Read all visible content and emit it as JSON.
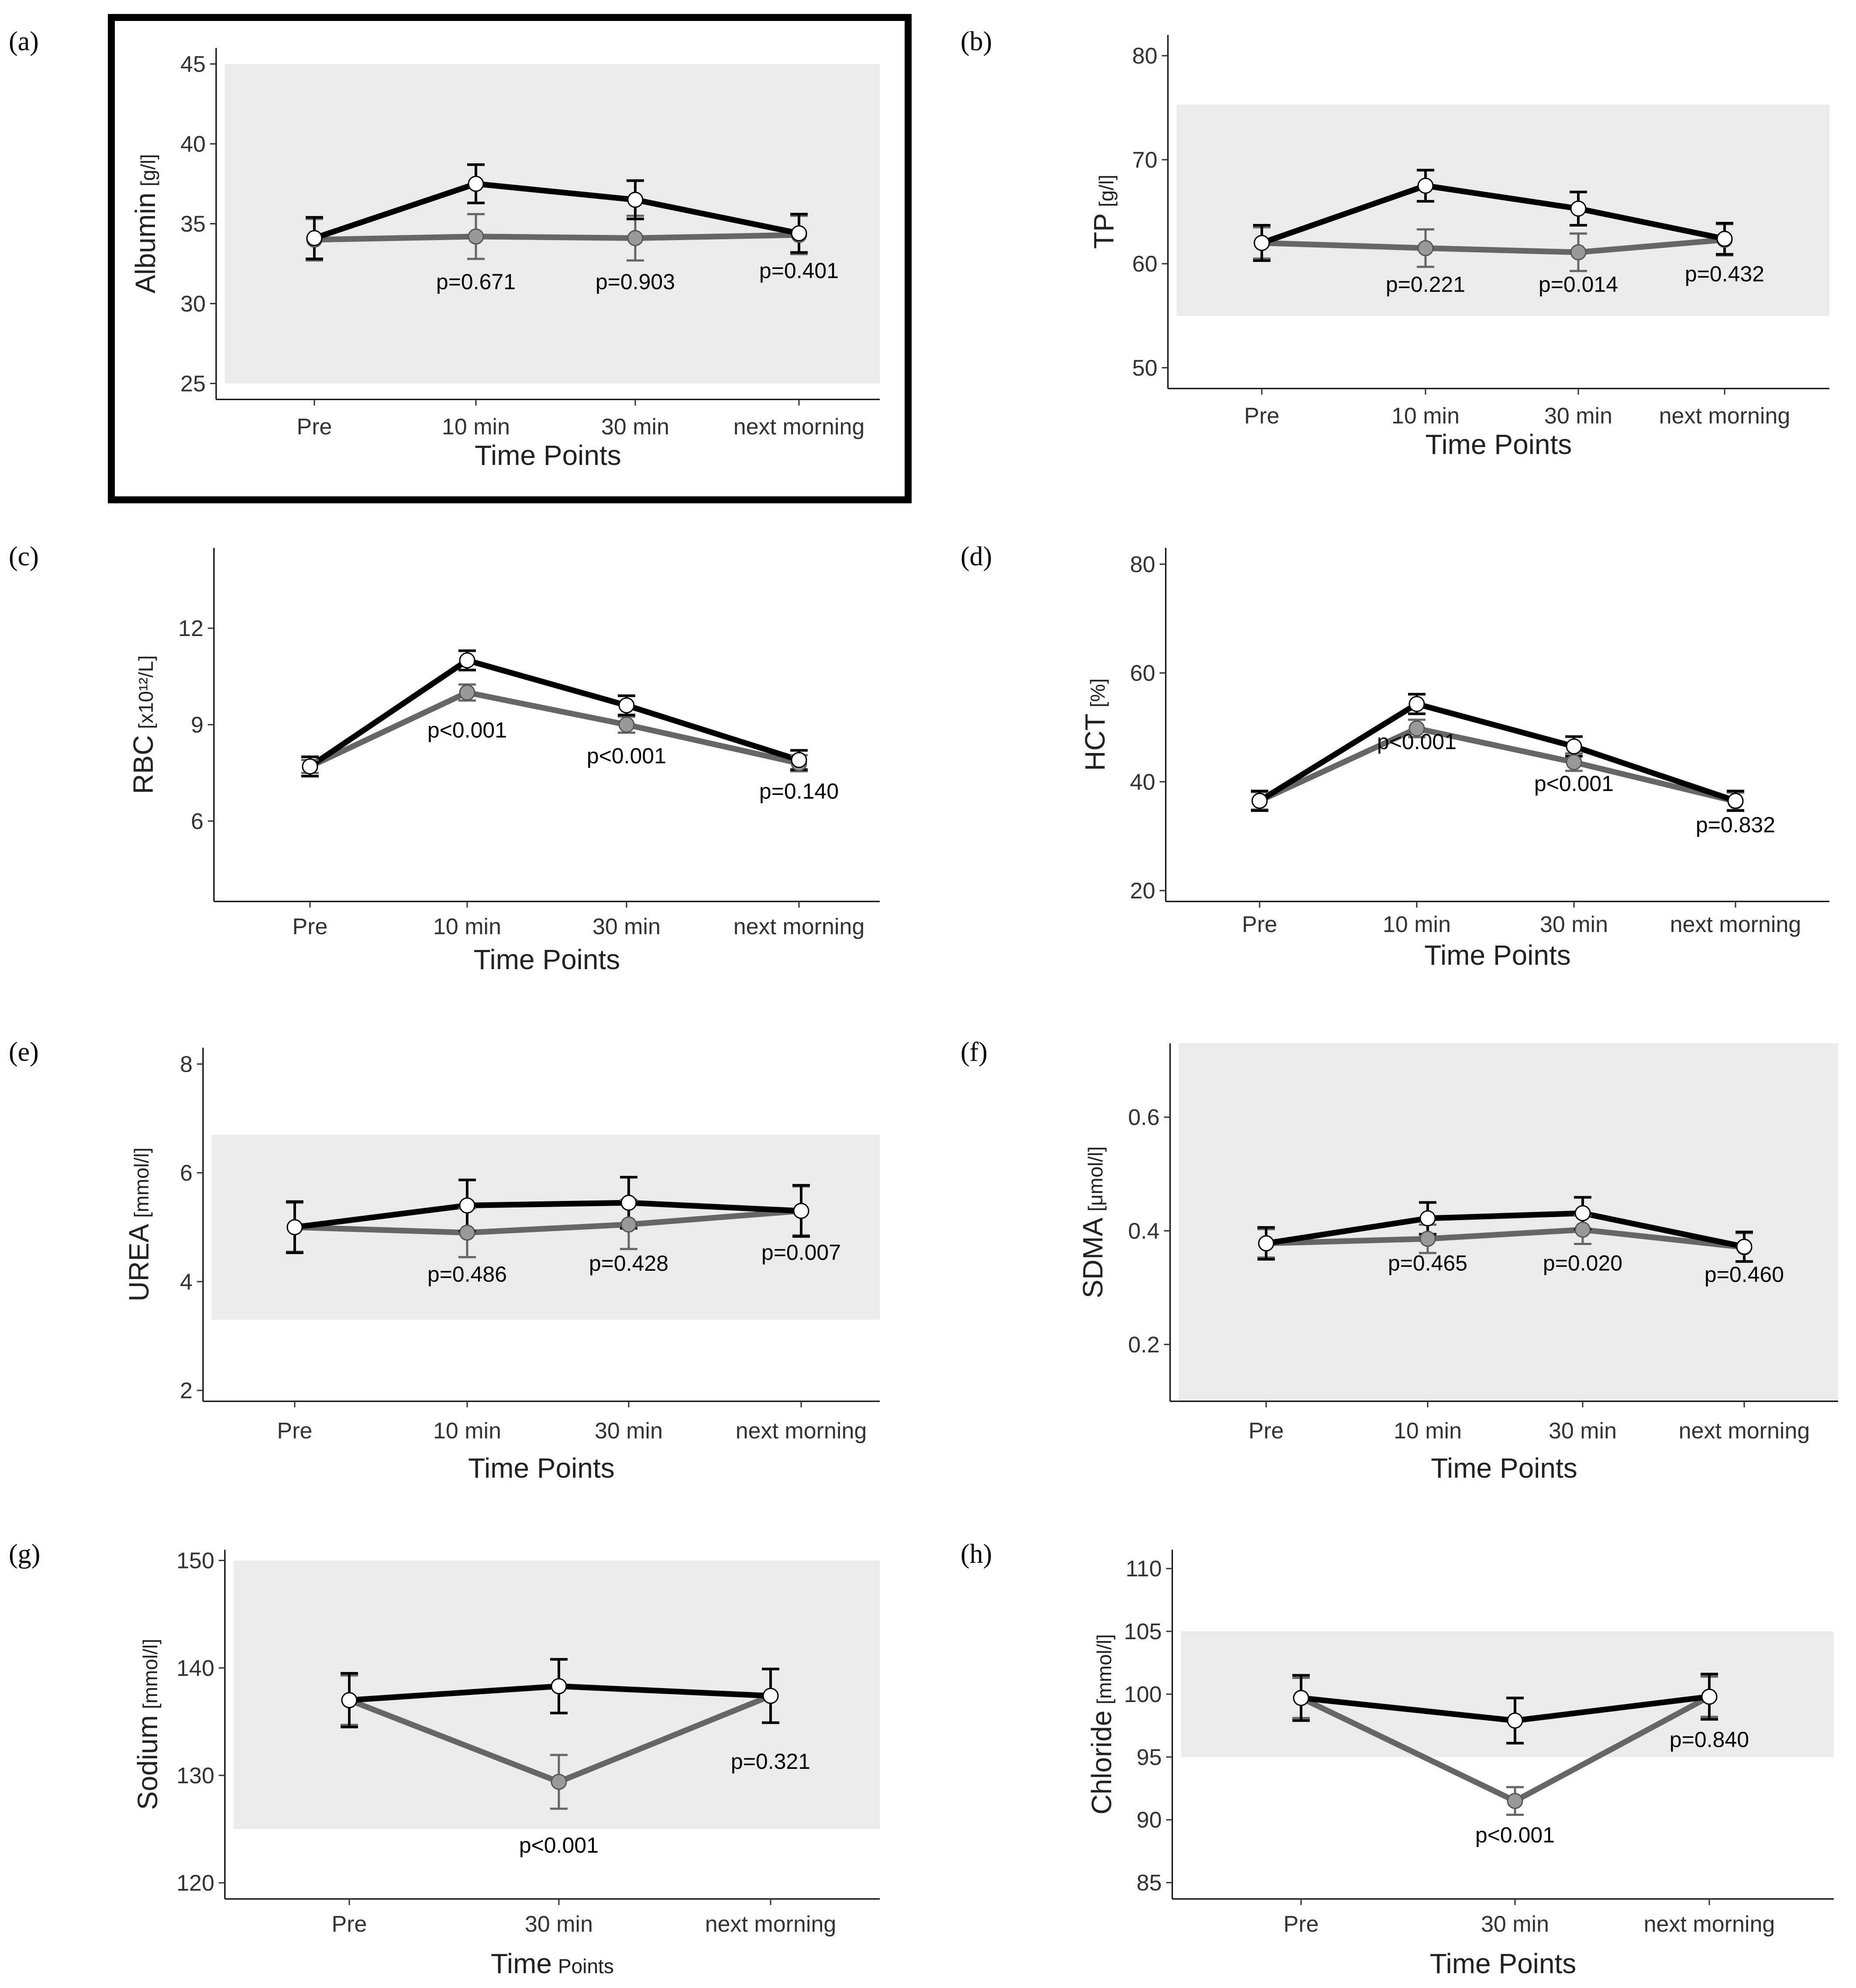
{
  "figure": {
    "highlight_panel": "a",
    "band_color": "#ebebeb",
    "series_colors": {
      "series_1": "#000000",
      "series_2": "#666666"
    },
    "marker_fill": {
      "series_1": "#ffffff",
      "series_2": "#999999"
    }
  },
  "chart_data": [
    {
      "id": "a",
      "letter": "(a)",
      "type": "line",
      "title": "",
      "ylabel": "Albumin",
      "yunit": "[g/l]",
      "xlabel": "Time Points",
      "xlabel_suffix": "",
      "categories": [
        "Pre",
        "10 min",
        "30 min",
        "next morning"
      ],
      "ylim": [
        24,
        46
      ],
      "yticks": [
        25,
        30,
        35,
        40,
        45
      ],
      "band": [
        25,
        45
      ],
      "series": [
        {
          "name": "series_1",
          "values": [
            34.1,
            37.5,
            36.5,
            34.4
          ],
          "errors": [
            1.3,
            1.2,
            1.2,
            1.2
          ]
        },
        {
          "name": "series_2",
          "values": [
            34.0,
            34.2,
            34.1,
            34.3
          ],
          "errors": [
            1.3,
            1.4,
            1.4,
            1.2
          ]
        }
      ],
      "pvalues": [
        {
          "label": "p=0.671",
          "index": 1,
          "y": 30.9
        },
        {
          "label": "p=0.903",
          "index": 2,
          "y": 30.9
        },
        {
          "label": "p=0.401",
          "index": 3,
          "y": 31.6
        }
      ]
    },
    {
      "id": "b",
      "letter": "(b)",
      "type": "line",
      "title": "",
      "ylabel": "TP",
      "yunit": "[g/l]",
      "xlabel": "Time Points",
      "xlabel_suffix": "",
      "categories": [
        "Pre",
        "10 min",
        "30 min",
        "next morning"
      ],
      "ylim": [
        48,
        82
      ],
      "yticks": [
        50,
        60,
        70,
        80
      ],
      "band": [
        55,
        75.3
      ],
      "series": [
        {
          "name": "series_1",
          "values": [
            62.0,
            67.5,
            65.3,
            62.4
          ],
          "errors": [
            1.7,
            1.5,
            1.6,
            1.5
          ]
        },
        {
          "name": "series_2",
          "values": [
            62.0,
            61.5,
            61.1,
            62.3
          ],
          "errors": [
            1.5,
            1.8,
            1.8,
            1.5
          ]
        }
      ],
      "pvalues": [
        {
          "label": "p=0.221",
          "index": 1,
          "y": 57.3
        },
        {
          "label": "p=0.014",
          "index": 2,
          "y": 57.3
        },
        {
          "label": "p=0.432",
          "index": 3,
          "y": 58.3
        }
      ]
    },
    {
      "id": "c",
      "letter": "(c)",
      "type": "line",
      "title": "",
      "ylabel": "RBC",
      "yunit": "[x10¹²/L]",
      "xlabel": "Time Points",
      "xlabel_suffix": "",
      "categories": [
        "Pre",
        "10 min",
        "30 min",
        "next morning"
      ],
      "ylim": [
        3.5,
        14.5
      ],
      "yticks": [
        6,
        9,
        12
      ],
      "band": null,
      "series": [
        {
          "name": "series_1",
          "values": [
            7.7,
            11.0,
            9.6,
            7.9
          ],
          "errors": [
            0.3,
            0.3,
            0.3,
            0.3
          ]
        },
        {
          "name": "series_2",
          "values": [
            7.7,
            10.0,
            9.0,
            7.8
          ],
          "errors": [
            0.2,
            0.25,
            0.25,
            0.25
          ]
        }
      ],
      "pvalues": [
        {
          "label": "p<0.001",
          "index": 1,
          "y": 8.6
        },
        {
          "label": "p<0.001",
          "index": 2,
          "y": 7.8
        },
        {
          "label": "p=0.140",
          "index": 3,
          "y": 6.7
        }
      ]
    },
    {
      "id": "d",
      "letter": "(d)",
      "type": "line",
      "title": "",
      "ylabel": "HCT",
      "yunit": "[%]",
      "xlabel": "Time Points",
      "xlabel_suffix": "",
      "categories": [
        "Pre",
        "10 min",
        "30 min",
        "next morning"
      ],
      "ylim": [
        18,
        83
      ],
      "yticks": [
        20,
        40,
        60,
        80
      ],
      "band": null,
      "series": [
        {
          "name": "series_1",
          "values": [
            36.5,
            54.3,
            46.5,
            36.5
          ],
          "errors": [
            1.8,
            1.8,
            1.8,
            1.8
          ]
        },
        {
          "name": "series_2",
          "values": [
            36.5,
            49.8,
            43.6,
            36.4
          ],
          "errors": [
            1.6,
            1.6,
            1.6,
            1.6
          ]
        }
      ],
      "pvalues": [
        {
          "label": "p<0.001",
          "index": 1,
          "y": 46.0
        },
        {
          "label": "p<0.001",
          "index": 2,
          "y": 38.3
        },
        {
          "label": "p=0.832",
          "index": 3,
          "y": 30.7
        }
      ]
    },
    {
      "id": "e",
      "letter": "(e)",
      "type": "line",
      "title": "",
      "ylabel": "UREA",
      "yunit": "[mmol/l]",
      "xlabel": "Time Points",
      "xlabel_suffix": "",
      "categories": [
        "Pre",
        "10 min",
        "30 min",
        "next morning"
      ],
      "ylim": [
        1.8,
        8.3
      ],
      "yticks": [
        2,
        4,
        6,
        8
      ],
      "band": [
        3.3,
        6.7
      ],
      "series": [
        {
          "name": "series_1",
          "values": [
            5.0,
            5.4,
            5.45,
            5.3
          ],
          "errors": [
            0.47,
            0.47,
            0.47,
            0.47
          ]
        },
        {
          "name": "series_2",
          "values": [
            5.0,
            4.9,
            5.05,
            5.3
          ],
          "errors": [
            0.45,
            0.45,
            0.45,
            0.45
          ]
        }
      ],
      "pvalues": [
        {
          "label": "p=0.486",
          "index": 1,
          "y": 4.0
        },
        {
          "label": "p=0.428",
          "index": 2,
          "y": 4.2
        },
        {
          "label": "p=0.007",
          "index": 3,
          "y": 4.4
        }
      ]
    },
    {
      "id": "f",
      "letter": "(f)",
      "type": "line",
      "title": "",
      "ylabel": "SDMA",
      "yunit": "[μmol/l]",
      "xlabel": "Time Points",
      "xlabel_suffix": "",
      "categories": [
        "Pre",
        "10 min",
        "30 min",
        "next morning"
      ],
      "ylim": [
        0.1,
        0.73
      ],
      "yticks": [
        0.2,
        0.4,
        0.6
      ],
      "band": [
        0.1,
        0.73
      ],
      "series": [
        {
          "name": "series_1",
          "values": [
            0.378,
            0.422,
            0.431,
            0.372
          ],
          "errors": [
            0.028,
            0.028,
            0.028,
            0.026
          ]
        },
        {
          "name": "series_2",
          "values": [
            0.378,
            0.386,
            0.402,
            0.371
          ],
          "errors": [
            0.025,
            0.025,
            0.025,
            0.025
          ]
        }
      ],
      "pvalues": [
        {
          "label": "p=0.465",
          "index": 1,
          "y": 0.33
        },
        {
          "label": "p=0.020",
          "index": 2,
          "y": 0.33
        },
        {
          "label": "p=0.460",
          "index": 3,
          "y": 0.31
        }
      ]
    },
    {
      "id": "g",
      "letter": "(g)",
      "type": "line",
      "title": "",
      "ylabel": "Sodium",
      "yunit": "[mmol/l]",
      "xlabel": "Time",
      "xlabel_suffix": "Points",
      "categories": [
        "Pre",
        "30 min",
        "next morning"
      ],
      "ylim": [
        118.5,
        151
      ],
      "yticks": [
        120,
        130,
        140,
        150
      ],
      "band": [
        125,
        150
      ],
      "series": [
        {
          "name": "series_1",
          "values": [
            137.0,
            138.3,
            137.4
          ],
          "errors": [
            2.5,
            2.5,
            2.5
          ]
        },
        {
          "name": "series_2",
          "values": [
            137.0,
            129.4,
            137.4
          ],
          "errors": [
            2.3,
            2.5,
            2.5
          ]
        }
      ],
      "pvalues": [
        {
          "label": "p<0.001",
          "index": 1,
          "y": 122.8
        },
        {
          "label": "p=0.321",
          "index": 2,
          "y": 130.6
        }
      ]
    },
    {
      "id": "h",
      "letter": "(h)",
      "type": "line",
      "title": "",
      "ylabel": "Chloride",
      "yunit": "[mmol/l]",
      "xlabel": "Time Points",
      "xlabel_suffix": "",
      "categories": [
        "Pre",
        "30 min",
        "next morning"
      ],
      "ylim": [
        83.7,
        111.5
      ],
      "yticks": [
        85,
        90,
        95,
        100,
        105,
        110
      ],
      "band": [
        95,
        105
      ],
      "series": [
        {
          "name": "series_1",
          "values": [
            99.7,
            97.9,
            99.8
          ],
          "errors": [
            1.8,
            1.8,
            1.8
          ]
        },
        {
          "name": "series_2",
          "values": [
            99.7,
            91.5,
            99.8
          ],
          "errors": [
            1.6,
            1.1,
            1.6
          ]
        }
      ],
      "pvalues": [
        {
          "label": "p<0.001",
          "index": 1,
          "y": 88.2
        },
        {
          "label": "p=0.840",
          "index": 2,
          "y": 95.8
        }
      ]
    }
  ]
}
